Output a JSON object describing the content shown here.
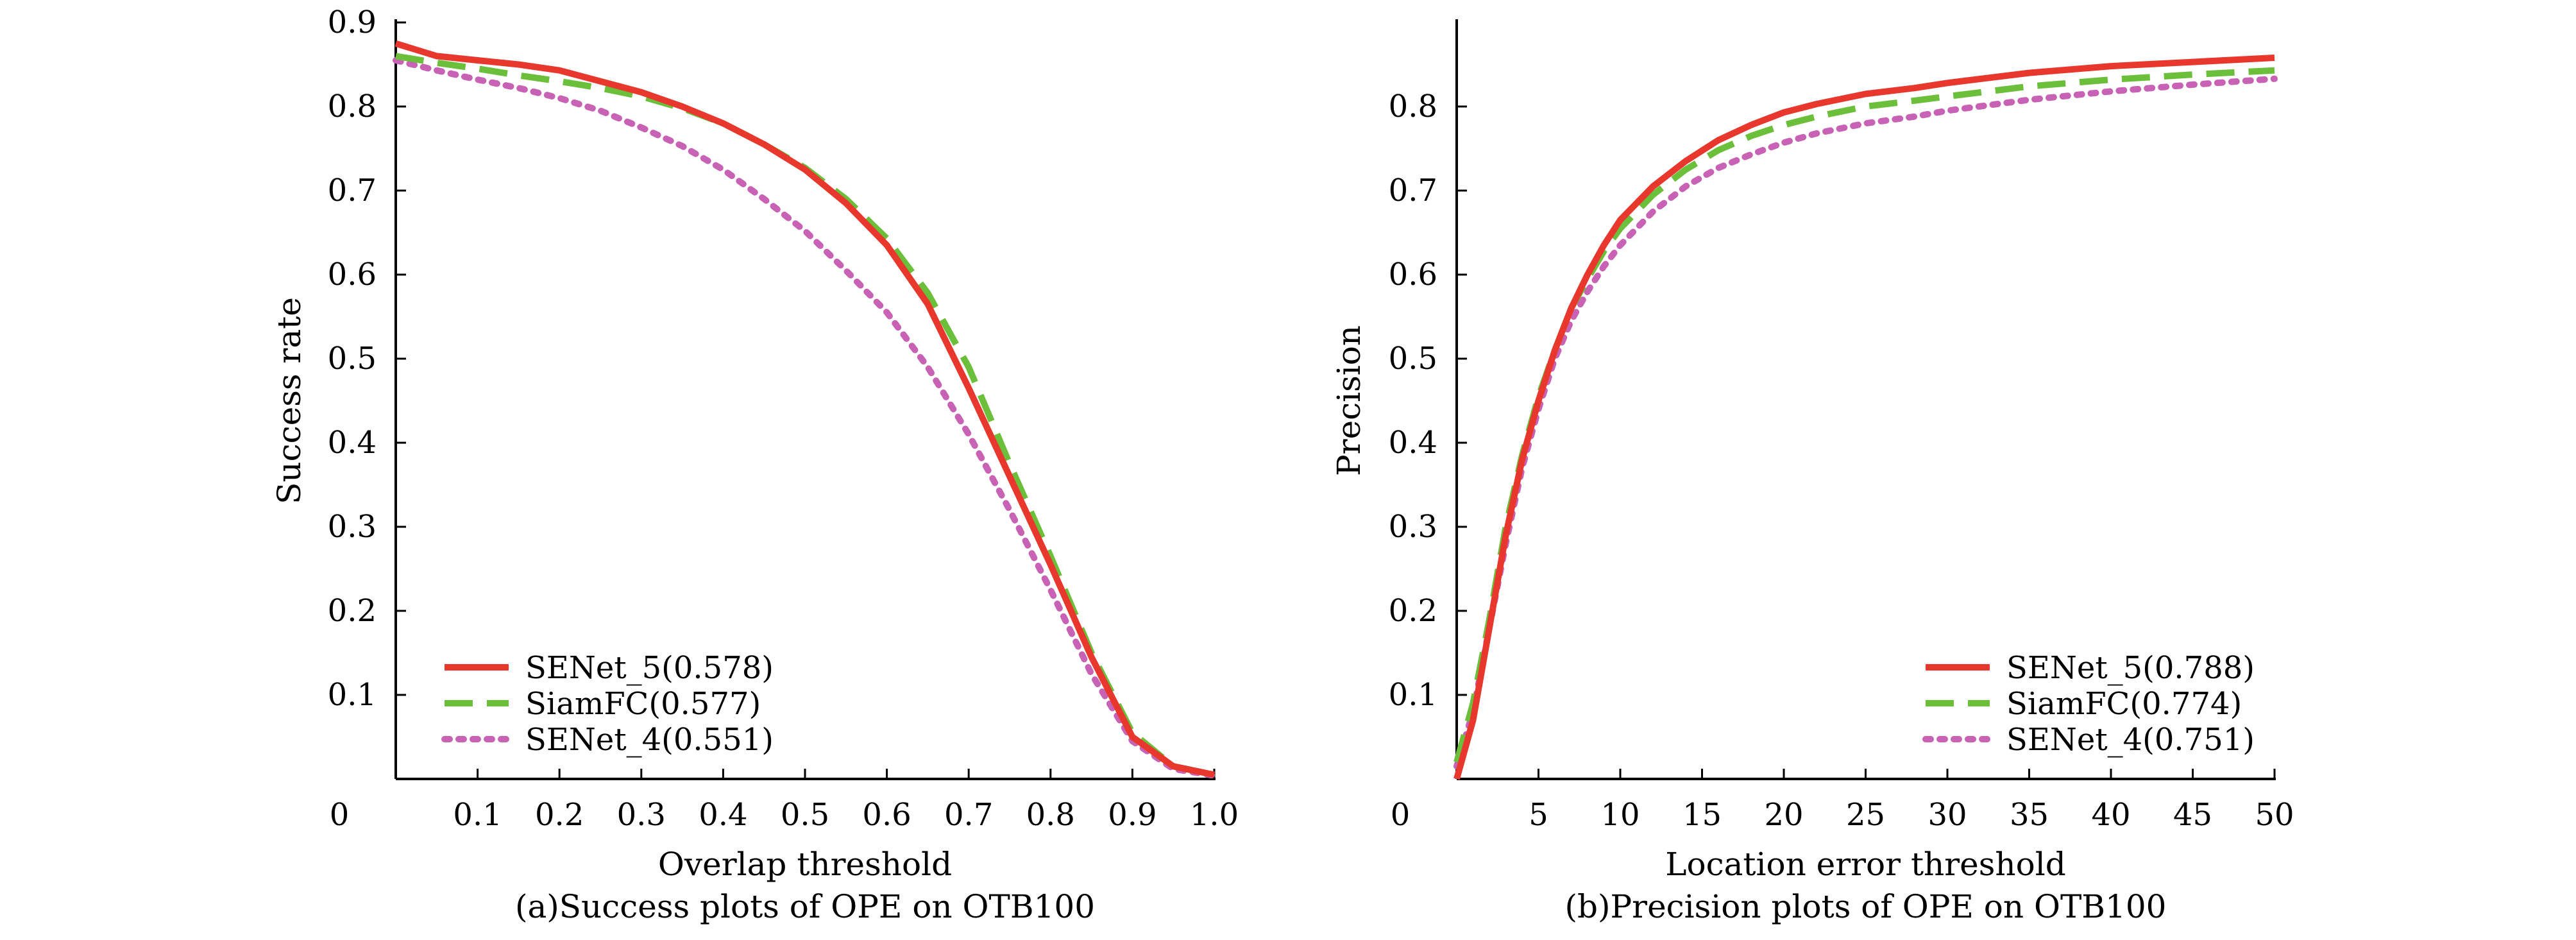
{
  "figure": {
    "panel_a_caption": "(a)Success plots of OPE on OTB100",
    "panel_b_caption": "(b)Precision plots of OPE on OTB100"
  },
  "colors": {
    "senet5": "#e8382e",
    "siamfc": "#6bbf3a",
    "senet4": "#c862b4",
    "axis": "#000000"
  },
  "chart_data": [
    {
      "type": "line",
      "title": "(a)Success plots of OPE on OTB100",
      "xlabel": "Overlap threshold",
      "ylabel": "Success rate",
      "xlim": [
        0,
        1.0
      ],
      "ylim": [
        0,
        0.9
      ],
      "x_origin_label": "0",
      "xticks": [
        0.1,
        0.2,
        0.3,
        0.4,
        0.5,
        0.6,
        0.7,
        0.8,
        0.9,
        1.0
      ],
      "xtick_labels": [
        "0.1",
        "0.2",
        "0.3",
        "0.4",
        "0.5",
        "0.6",
        "0.7",
        "0.8",
        "0.9",
        "1.0"
      ],
      "yticks": [
        0.1,
        0.2,
        0.3,
        0.4,
        0.5,
        0.6,
        0.7,
        0.8,
        0.9
      ],
      "ytick_labels": [
        "0.1",
        "0.2",
        "0.3",
        "0.4",
        "0.5",
        "0.6",
        "0.7",
        "0.8",
        "0.9"
      ],
      "legend_position": "bottom-left",
      "x": [
        0,
        0.05,
        0.1,
        0.15,
        0.2,
        0.25,
        0.3,
        0.35,
        0.4,
        0.45,
        0.5,
        0.55,
        0.6,
        0.65,
        0.7,
        0.75,
        0.8,
        0.85,
        0.9,
        0.95,
        1.0
      ],
      "series": [
        {
          "name": "SENet_5(0.578)",
          "style": "solid",
          "color_key": "senet5",
          "values": [
            0.875,
            0.86,
            0.855,
            0.85,
            0.843,
            0.83,
            0.817,
            0.8,
            0.78,
            0.755,
            0.725,
            0.685,
            0.635,
            0.565,
            0.465,
            0.36,
            0.255,
            0.145,
            0.05,
            0.015,
            0.005
          ]
        },
        {
          "name": "SiamFC(0.577)",
          "style": "dashed",
          "color_key": "siamfc",
          "values": [
            0.86,
            0.852,
            0.845,
            0.837,
            0.83,
            0.822,
            0.812,
            0.798,
            0.78,
            0.755,
            0.727,
            0.69,
            0.643,
            0.578,
            0.49,
            0.375,
            0.265,
            0.15,
            0.055,
            0.015,
            0.005
          ]
        },
        {
          "name": "SENet_4(0.551)",
          "style": "dotted",
          "color_key": "senet4",
          "values": [
            0.855,
            0.843,
            0.832,
            0.822,
            0.81,
            0.795,
            0.775,
            0.753,
            0.725,
            0.69,
            0.652,
            0.605,
            0.555,
            0.49,
            0.41,
            0.32,
            0.225,
            0.125,
            0.045,
            0.012,
            0.004
          ]
        }
      ]
    },
    {
      "type": "line",
      "title": "(b)Precision plots of OPE on OTB100",
      "xlabel": "Location error threshold",
      "ylabel": "Precision",
      "xlim": [
        0,
        50
      ],
      "ylim": [
        0,
        0.9
      ],
      "x_origin_label": "0",
      "xticks": [
        5,
        10,
        15,
        20,
        25,
        30,
        35,
        40,
        45,
        50
      ],
      "xtick_labels": [
        "5",
        "10",
        "15",
        "20",
        "25",
        "30",
        "35",
        "40",
        "45",
        "50"
      ],
      "yticks": [
        0.1,
        0.2,
        0.3,
        0.4,
        0.5,
        0.6,
        0.7,
        0.8
      ],
      "ytick_labels": [
        "0.1",
        "0.2",
        "0.3",
        "0.4",
        "0.5",
        "0.6",
        "0.7",
        "0.8"
      ],
      "legend_position": "bottom-right",
      "x": [
        0,
        1,
        2,
        3,
        4,
        5,
        6,
        7,
        8,
        9,
        10,
        12,
        14,
        16,
        18,
        20,
        22,
        25,
        28,
        30,
        35,
        40,
        45,
        50
      ],
      "series": [
        {
          "name": "SENet_5(0.788)",
          "style": "solid",
          "color_key": "senet5",
          "values": [
            0.0,
            0.07,
            0.18,
            0.29,
            0.38,
            0.45,
            0.51,
            0.56,
            0.6,
            0.635,
            0.665,
            0.705,
            0.735,
            0.76,
            0.778,
            0.793,
            0.803,
            0.815,
            0.822,
            0.828,
            0.84,
            0.848,
            0.853,
            0.858
          ]
        },
        {
          "name": "SiamFC(0.774)",
          "style": "dashed",
          "color_key": "siamfc",
          "values": [
            0.02,
            0.09,
            0.19,
            0.3,
            0.385,
            0.455,
            0.51,
            0.56,
            0.595,
            0.628,
            0.655,
            0.695,
            0.725,
            0.748,
            0.765,
            0.778,
            0.788,
            0.8,
            0.807,
            0.812,
            0.824,
            0.832,
            0.838,
            0.843
          ]
        },
        {
          "name": "SENet_4(0.751)",
          "style": "dotted",
          "color_key": "senet4",
          "values": [
            0.015,
            0.08,
            0.18,
            0.28,
            0.37,
            0.44,
            0.5,
            0.545,
            0.58,
            0.61,
            0.635,
            0.675,
            0.705,
            0.727,
            0.743,
            0.757,
            0.768,
            0.78,
            0.788,
            0.795,
            0.808,
            0.818,
            0.826,
            0.833
          ]
        }
      ]
    }
  ]
}
